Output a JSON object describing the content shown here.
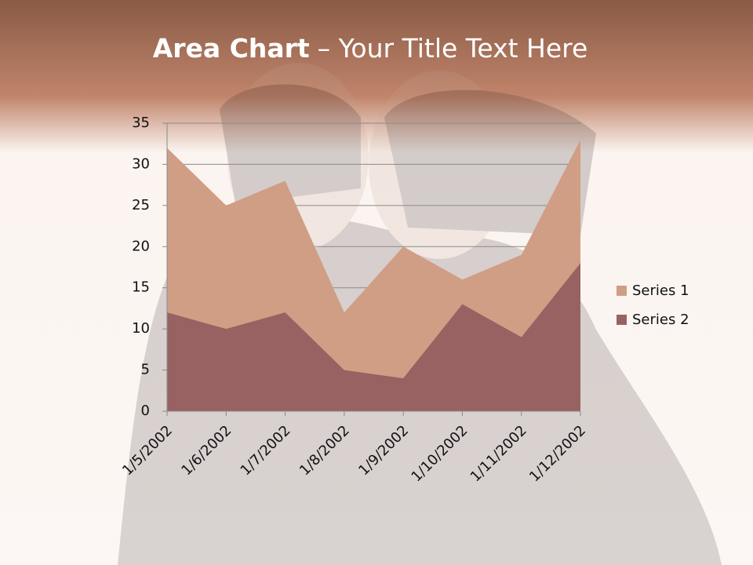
{
  "chart_data": {
    "type": "area",
    "title": {
      "bold": "Area Chart",
      "rest": "– Your Title Text Here"
    },
    "categories": [
      "1/5/2002",
      "1/6/2002",
      "1/7/2002",
      "1/8/2002",
      "1/9/2002",
      "1/10/2002",
      "1/11/2002",
      "1/12/2002"
    ],
    "series": [
      {
        "name": "Series 1",
        "color": "#d09e85",
        "values": [
          32,
          25,
          28,
          12,
          20,
          16,
          19,
          33
        ]
      },
      {
        "name": "Series 2",
        "color": "#986262",
        "values": [
          12,
          10,
          12,
          5,
          4,
          13,
          9,
          18
        ]
      }
    ],
    "ylim": [
      0,
      35
    ],
    "yticks": [
      0,
      5,
      10,
      15,
      20,
      25,
      30,
      35
    ],
    "grid": true,
    "legend": "right"
  }
}
